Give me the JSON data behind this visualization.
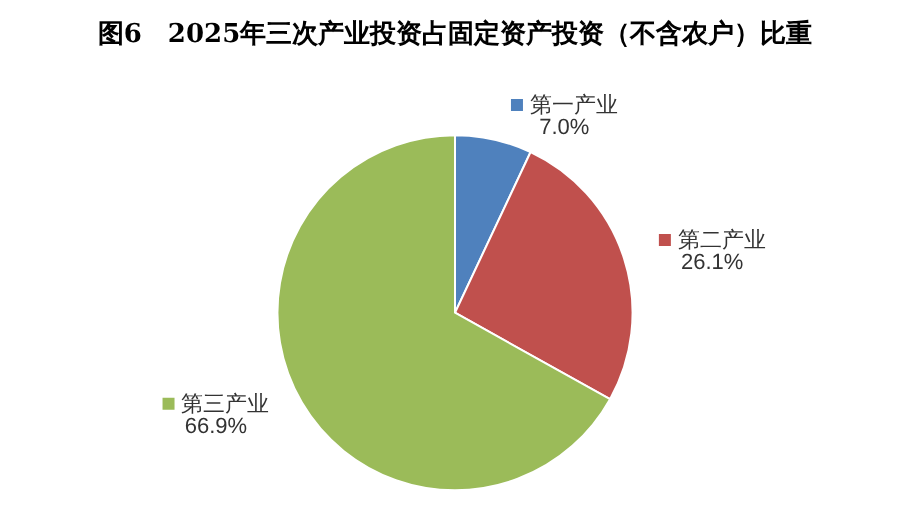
{
  "chart_data": {
    "type": "pie",
    "title": "图6　2025年三次产业投资占固定资产投资（不含农户）比重",
    "categories": [
      "第一产业",
      "第二产业",
      "第三产业"
    ],
    "values": [
      7.0,
      26.1,
      66.9
    ],
    "colors": [
      "#4f81bd",
      "#c0504d",
      "#9bbb59"
    ],
    "value_labels": [
      "7.0%",
      "26.1%",
      "66.9%"
    ],
    "legend": "center"
  }
}
